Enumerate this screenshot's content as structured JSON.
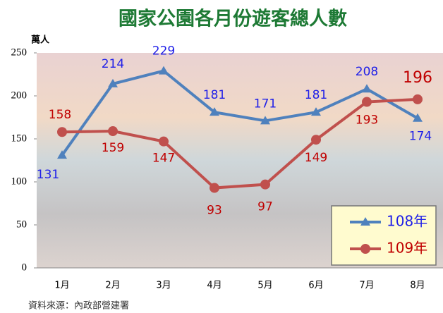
{
  "chart_data": {
    "type": "line",
    "title": "國家公園各月份遊客總人數",
    "y_label": "萬人",
    "source": "資料來源：內政部營建署",
    "categories": [
      "1月",
      "2月",
      "3月",
      "4月",
      "5月",
      "6月",
      "7月",
      "8月"
    ],
    "series": [
      {
        "name": "108年",
        "color": "#4f81bd",
        "label_color": "#1f1fe8",
        "marker": "triangle",
        "values": [
          131,
          214,
          229,
          181,
          171,
          181,
          208,
          174
        ]
      },
      {
        "name": "109年",
        "color": "#c0504d",
        "label_color": "#c00000",
        "marker": "circle",
        "values": [
          158,
          159,
          147,
          93,
          97,
          149,
          193,
          196
        ]
      }
    ],
    "ylim": [
      0,
      250
    ],
    "yticks": [
      0,
      50,
      100,
      150,
      200,
      250
    ],
    "legend": "lower right"
  }
}
